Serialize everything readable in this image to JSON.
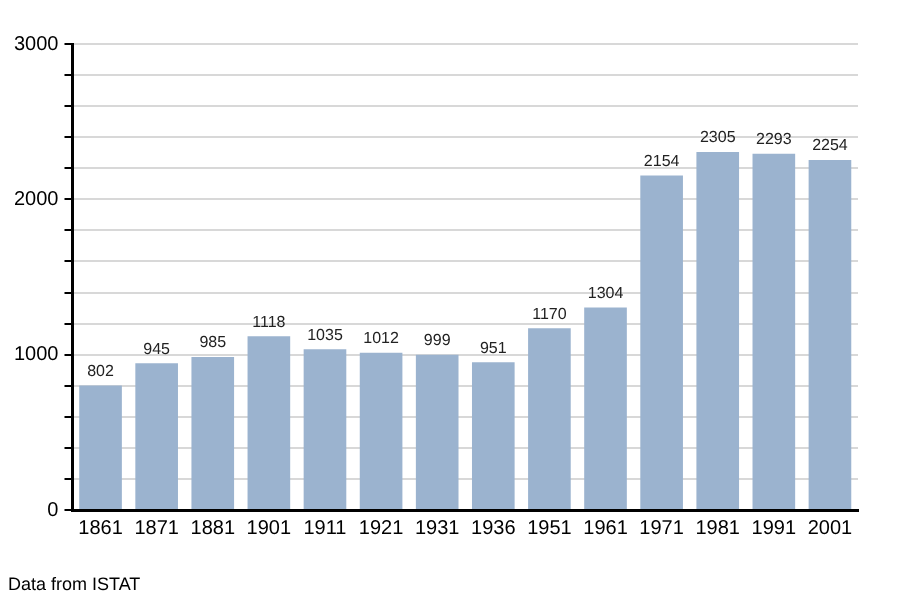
{
  "chart_data": {
    "type": "bar",
    "categories": [
      "1861",
      "1871",
      "1881",
      "1901",
      "1911",
      "1921",
      "1931",
      "1936",
      "1951",
      "1961",
      "1971",
      "1981",
      "1991",
      "2001"
    ],
    "values": [
      802,
      945,
      985,
      1118,
      1035,
      1012,
      999,
      951,
      1170,
      1304,
      2154,
      2305,
      2293,
      2254
    ],
    "color": "#9bb3cf",
    "ylim": [
      0,
      3000
    ],
    "yticks": [
      0,
      {
        "value": 200,
        "label": null
      },
      {
        "value": 400,
        "label": null
      },
      {
        "value": 600,
        "label": null
      },
      {
        "value": 800,
        "label": null
      },
      1000,
      {
        "value": 1200,
        "label": null
      },
      {
        "value": 1400,
        "label": null
      },
      {
        "value": 1600,
        "label": null
      },
      {
        "value": 1800,
        "label": null
      },
      2000,
      {
        "value": 2200,
        "label": null
      },
      {
        "value": 2400,
        "label": null
      },
      {
        "value": 2600,
        "label": null
      },
      {
        "value": 2800,
        "label": null
      },
      3000
    ],
    "grid": "y",
    "data_labels": true,
    "annotations": [
      "Data from ISTAT"
    ]
  }
}
